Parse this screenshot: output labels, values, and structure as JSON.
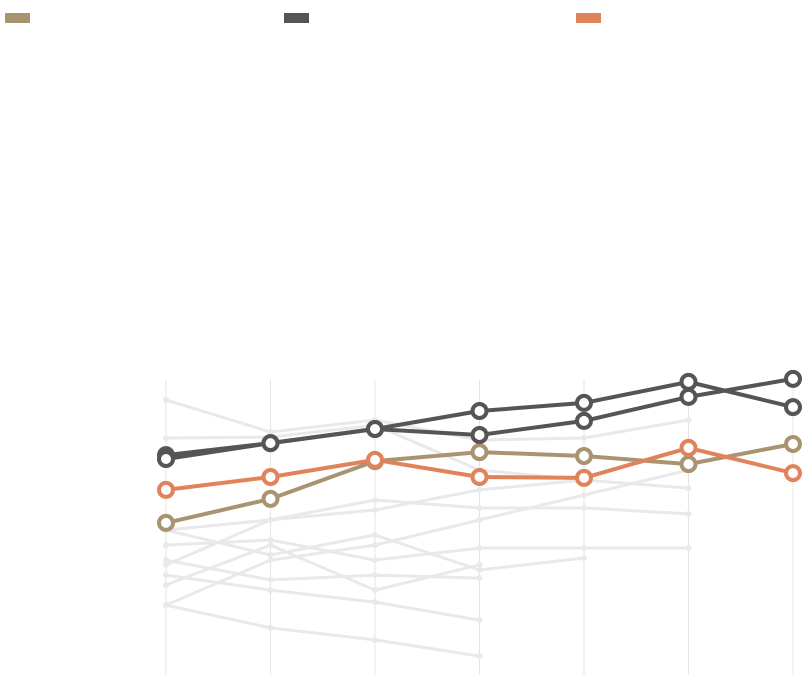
{
  "chart_data": {
    "type": "line",
    "categories": [
      null,
      null,
      null,
      null,
      null,
      null,
      null
    ],
    "ylim": [
      0,
      100
    ],
    "background_series": [
      {
        "color": "#e9e9e9",
        "values": [
          91.7,
          81,
          85,
          78.3,
          79,
          85,
          null
        ]
      },
      {
        "color": "#e9e9e9",
        "values": [
          79,
          79.3,
          83.3,
          68.3,
          65,
          62.3,
          null
        ]
      },
      {
        "color": "#e9e9e9",
        "values": [
          48.3,
          51.7,
          58.3,
          55.7,
          55.7,
          53.7,
          null
        ]
      },
      {
        "color": "#e9e9e9",
        "values": [
          43.3,
          45,
          38.3,
          42.3,
          42.3,
          42.3,
          null
        ]
      },
      {
        "color": "#e9e9e9",
        "values": [
          38.3,
          31.7,
          33.3,
          32.3,
          null,
          null,
          null
        ]
      },
      {
        "color": "#e9e9e9",
        "values": [
          23.3,
          38.3,
          43.3,
          51.7,
          60,
          68.3,
          null
        ]
      },
      {
        "color": "#e9e9e9",
        "values": [
          33.3,
          28.3,
          24.3,
          18.3,
          null,
          null,
          null
        ]
      },
      {
        "color": "#e9e9e9",
        "values": [
          23.3,
          15.7,
          11.7,
          6.3,
          null,
          null,
          null
        ]
      },
      {
        "color": "#e9e9e9",
        "values": [
          48.3,
          40,
          46.7,
          35,
          39,
          null,
          null
        ]
      },
      {
        "color": "#e9e9e9",
        "values": [
          30,
          43.3,
          28.3,
          36.7,
          null,
          null,
          null
        ]
      },
      {
        "color": "#e9e9e9",
        "values": [
          36.7,
          51.7,
          55,
          61.7,
          65,
          null,
          null
        ]
      }
    ],
    "series": [
      {
        "color": "#a89470",
        "values": [
          50.7,
          58.7,
          71.3,
          74.3,
          73,
          70.3,
          77
        ]
      },
      {
        "color": "#555555",
        "values": [
          73.3,
          77.3,
          82,
          88,
          90.7,
          97.7,
          89.3
        ]
      },
      {
        "color": "#555555",
        "values": [
          72,
          77.3,
          82,
          80,
          84.7,
          92.7,
          98.7
        ]
      },
      {
        "color": "#e0825a",
        "values": [
          61.7,
          66,
          71.7,
          66,
          65.7,
          75.7,
          67.3
        ]
      }
    ]
  }
}
